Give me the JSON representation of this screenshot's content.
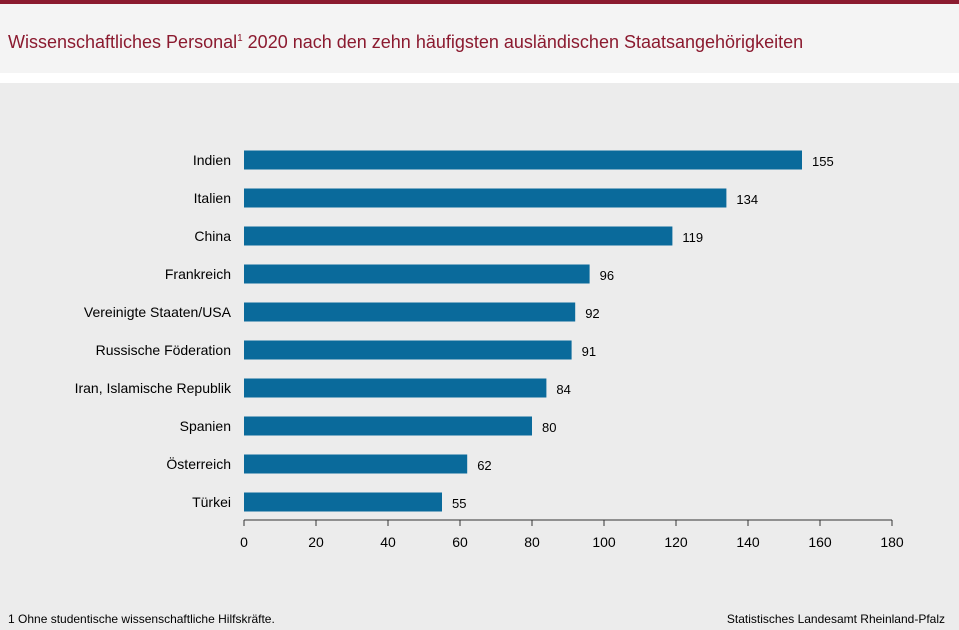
{
  "title": {
    "text": "Wissenschaftliches Personal",
    "sup": "1",
    "rest": " 2020 nach den zehn häufigsten ausländischen Staatsangehörigkeiten"
  },
  "colors": {
    "accent": "#8b1a2f",
    "bar": "#0a6a9b",
    "title_text": "#8b1a2f"
  },
  "chart_data": {
    "type": "bar",
    "orientation": "horizontal",
    "categories": [
      "Indien",
      "Italien",
      "China",
      "Frankreich",
      "Vereinigte Staaten/USA",
      "Russische Föderation",
      "Iran, Islamische Republik",
      "Spanien",
      "Österreich",
      "Türkei"
    ],
    "values": [
      155,
      134,
      119,
      96,
      92,
      91,
      84,
      80,
      62,
      55
    ],
    "xlim": [
      0,
      180
    ],
    "xticks": [
      0,
      20,
      40,
      60,
      80,
      100,
      120,
      140,
      160,
      180
    ],
    "xlabel": "",
    "ylabel": "",
    "grid": false,
    "data_labels": true
  },
  "footnote": "1 Ohne studentische wissenschaftliche Hilfskräfte.",
  "source": "Statistisches Landesamt Rheinland-Pfalz"
}
